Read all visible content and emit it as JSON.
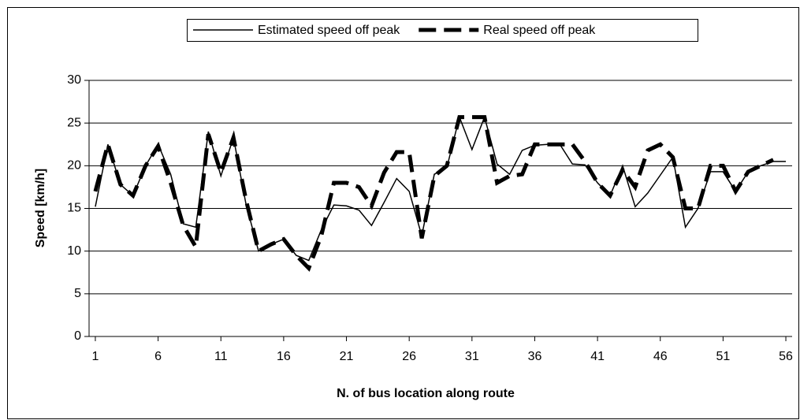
{
  "chart_data": {
    "type": "line",
    "xlabel": "N. of bus location along route",
    "ylabel": "Speed [km/h]",
    "x": [
      1,
      2,
      3,
      4,
      5,
      6,
      7,
      8,
      9,
      10,
      11,
      12,
      13,
      14,
      15,
      16,
      17,
      18,
      19,
      20,
      21,
      22,
      23,
      24,
      25,
      26,
      27,
      28,
      29,
      30,
      31,
      32,
      33,
      34,
      35,
      36,
      37,
      38,
      39,
      40,
      41,
      42,
      43,
      44,
      45,
      46,
      47,
      48,
      49,
      50,
      51,
      52,
      53,
      54,
      55,
      56
    ],
    "xlim": [
      0.5,
      56.5
    ],
    "xticks": [
      1,
      6,
      11,
      16,
      21,
      26,
      31,
      36,
      41,
      46,
      51,
      56
    ],
    "ylim": [
      0,
      30
    ],
    "yticks": [
      0,
      5,
      10,
      15,
      20,
      25,
      30
    ],
    "grid": true,
    "legend": "top",
    "series": [
      {
        "name": "Estimated speed off peak",
        "color": "#000000",
        "line_style": "solid",
        "values": [
          15.2,
          22.5,
          17.8,
          16.5,
          20,
          22.5,
          19,
          13.2,
          12.8,
          24,
          18.8,
          23.3,
          15.5,
          10,
          10.8,
          11.4,
          9.5,
          8.9,
          12.5,
          15.4,
          15.3,
          14.8,
          13,
          15.7,
          18.5,
          17,
          11.8,
          19,
          19.8,
          25.7,
          21.9,
          25.7,
          20.2,
          19,
          21.8,
          22.4,
          22.5,
          22.5,
          20.2,
          20.1,
          18,
          16.5,
          20,
          15.2,
          16.8,
          18.9,
          21,
          12.8,
          15,
          19.3,
          19.3,
          17,
          19.3,
          20,
          20.5,
          20.5
        ]
      },
      {
        "name": "Real speed off peak",
        "color": "#000000",
        "line_style": "dashed",
        "values": [
          17,
          22.5,
          17.8,
          16.5,
          20,
          22.3,
          18,
          13,
          10.5,
          23.7,
          19.2,
          23.3,
          16,
          10,
          10.8,
          11.4,
          9.5,
          8,
          11.8,
          18,
          18,
          17.5,
          15.3,
          19.2,
          21.6,
          21.6,
          11.5,
          18.8,
          20,
          25.7,
          25.7,
          25.7,
          18,
          18.8,
          19,
          22.5,
          22.5,
          22.5,
          22.5,
          20.5,
          18,
          16.5,
          19.5,
          17.5,
          21.8,
          22.5,
          21,
          15,
          15,
          20,
          20,
          17,
          19.3,
          20,
          20.7,
          null
        ]
      }
    ]
  }
}
